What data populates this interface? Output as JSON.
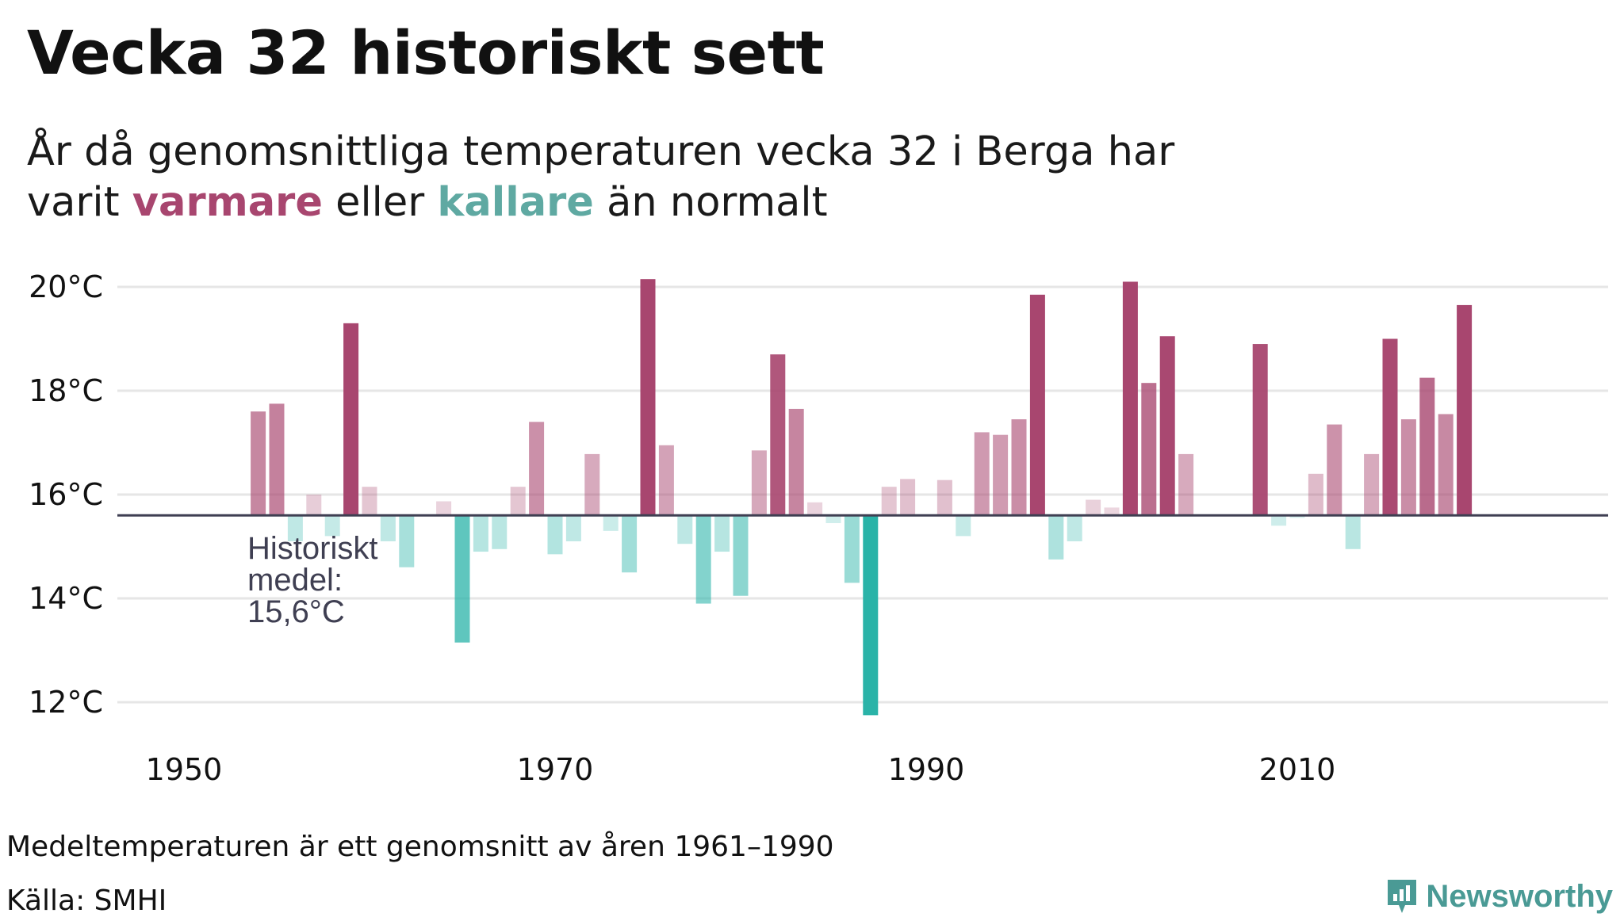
{
  "header": {
    "title": "Vecka 32 historiskt sett",
    "subtitle_part1": "År då genomsnittliga temperaturen vecka 32 i Berga har",
    "subtitle_part2": "varit",
    "subtitle_warm": "varmare",
    "subtitle_mid": "eller",
    "subtitle_cold": "kallare",
    "subtitle_end": "än normalt"
  },
  "colors": {
    "warm": "#a8466f",
    "cold": "#2ab3a8",
    "baseline": "#3f3f52",
    "grid": "#e6e6e6"
  },
  "footer": {
    "note": "Medeltemperaturen är ett genomsnitt av åren 1961–1990",
    "source": "Källa: SMHI",
    "brand": "Newsworthy",
    "brand_icon": "newsworthy-logo-icon"
  },
  "chart_data": {
    "type": "bar",
    "title": "Vecka 32 historiskt sett",
    "xlabel": "",
    "ylabel": "",
    "baseline": 15.6,
    "baseline_label_line1": "Historiskt",
    "baseline_label_line2": "medel:",
    "baseline_label_line3": "15,6°C",
    "ylim": [
      11.5,
      20.5
    ],
    "xlim": [
      1947.4,
      2027.8
    ],
    "y_ticks": [
      12,
      14,
      16,
      18,
      20
    ],
    "y_tick_labels": [
      "12°C",
      "14°C",
      "16°C",
      "18°C",
      "20°C"
    ],
    "x_ticks": [
      1950,
      1970,
      1990,
      2010
    ],
    "x_tick_labels": [
      "1950",
      "1970",
      "1990",
      "2010"
    ],
    "years": [
      1954,
      1955,
      1956,
      1957,
      1958,
      1959,
      1960,
      1961,
      1962,
      1963,
      1964,
      1965,
      1966,
      1967,
      1968,
      1969,
      1970,
      1971,
      1972,
      1973,
      1974,
      1975,
      1976,
      1977,
      1978,
      1979,
      1980,
      1981,
      1982,
      1983,
      1984,
      1985,
      1986,
      1987,
      1988,
      1989,
      1990,
      1991,
      1992,
      1993,
      1994,
      1995,
      1996,
      1997,
      1998,
      1999,
      2000,
      2001,
      2002,
      2003,
      2004,
      2005,
      2006,
      2007,
      2008,
      2009,
      2010,
      2011,
      2012,
      2013,
      2014,
      2015,
      2016,
      2017,
      2018,
      2019,
      2020,
      2021,
      2022
    ],
    "values": [
      17.6,
      17.75,
      15.1,
      16.0,
      15.2,
      19.3,
      16.15,
      15.1,
      14.6,
      null,
      15.87,
      13.15,
      14.9,
      14.95,
      16.15,
      17.4,
      14.85,
      15.1,
      16.78,
      15.3,
      14.5,
      20.15,
      16.95,
      15.05,
      13.9,
      14.9,
      14.05,
      16.85,
      18.7,
      17.65,
      15.85,
      15.45,
      14.3,
      11.75,
      16.15,
      16.3,
      null,
      16.28,
      15.2,
      17.2,
      17.15,
      17.45,
      19.85,
      14.75,
      15.1,
      15.9,
      15.75,
      20.1,
      18.15,
      19.05,
      16.78,
      null,
      null,
      null,
      18.9,
      15.4,
      15.55,
      16.4,
      17.35,
      14.95,
      16.78,
      19.0,
      17.45,
      18.25,
      17.55,
      19.65,
      null,
      null,
      null
    ]
  }
}
